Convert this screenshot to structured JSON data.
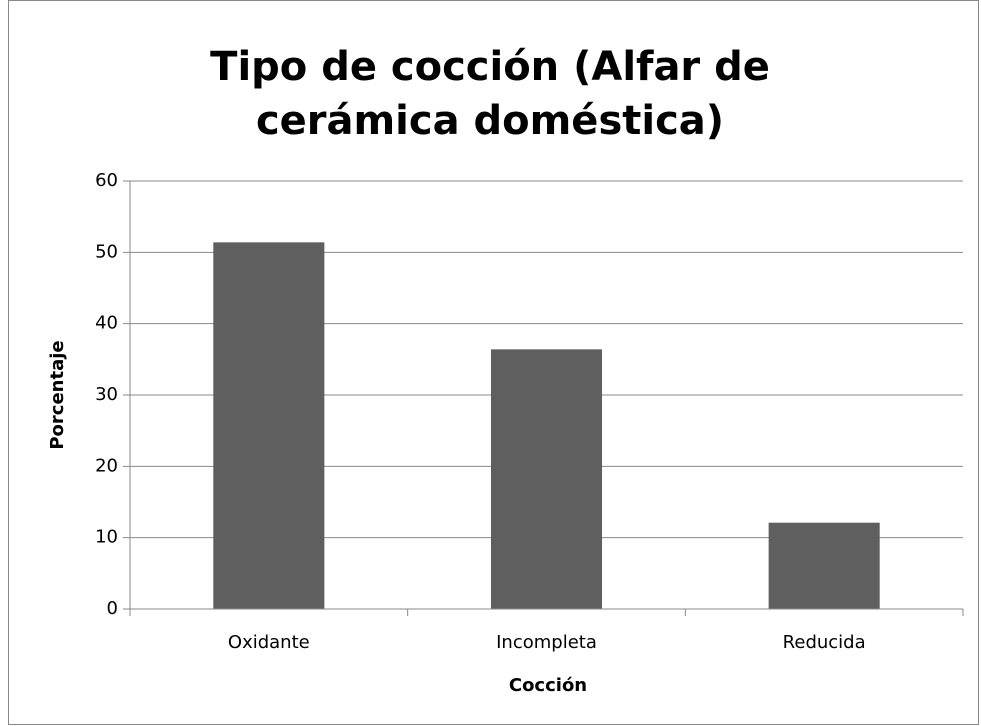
{
  "chart_data": {
    "type": "bar",
    "title": "Tipo de cocción (Alfar de cerámica doméstica)",
    "x_label": "Cocción",
    "y_label": "Porcentaje",
    "categories": [
      "Oxidante",
      "Incompleta",
      "Reducida"
    ],
    "values": [
      51.4,
      36.4,
      12.1
    ],
    "color": "#5f5f5f",
    "ylim": [
      0,
      60
    ],
    "yticks": [
      0,
      10,
      20,
      30,
      40,
      50,
      60
    ],
    "grid": true
  }
}
